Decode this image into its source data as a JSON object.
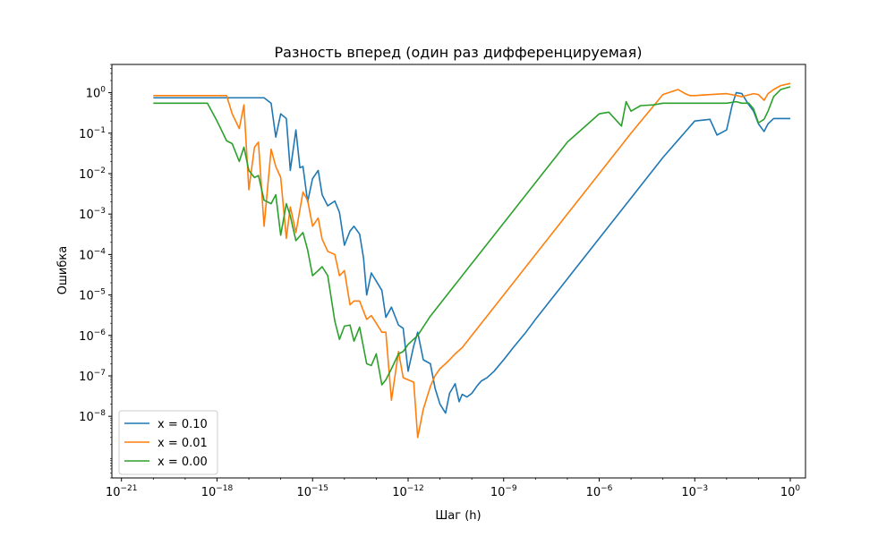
{
  "chart_data": {
    "type": "line",
    "title": "Разность вперед (один раз дифференцируемая)",
    "xlabel": "Шаг (h)",
    "ylabel": "Ошибка",
    "xscale": "log",
    "yscale": "log",
    "xlim": [
      5e-22,
      3
    ],
    "ylim": [
      3e-10,
      5
    ],
    "x_ticks": [
      1e-21,
      1e-18,
      1e-15,
      1e-12,
      1e-09,
      1e-06,
      0.001,
      1
    ],
    "x_tick_labels": [
      {
        "base": "10",
        "exp": "−21"
      },
      {
        "base": "10",
        "exp": "−18"
      },
      {
        "base": "10",
        "exp": "−15"
      },
      {
        "base": "10",
        "exp": "−12"
      },
      {
        "base": "10",
        "exp": "−9"
      },
      {
        "base": "10",
        "exp": "−6"
      },
      {
        "base": "10",
        "exp": "−3"
      },
      {
        "base": "10",
        "exp": "0"
      }
    ],
    "y_ticks": [
      1e-08,
      1e-07,
      1e-06,
      1e-05,
      0.0001,
      0.001,
      0.01,
      0.1,
      1
    ],
    "y_tick_labels": [
      {
        "base": "10",
        "exp": "−8"
      },
      {
        "base": "10",
        "exp": "−7"
      },
      {
        "base": "10",
        "exp": "−6"
      },
      {
        "base": "10",
        "exp": "−5"
      },
      {
        "base": "10",
        "exp": "−4"
      },
      {
        "base": "10",
        "exp": "−3"
      },
      {
        "base": "10",
        "exp": "−2"
      },
      {
        "base": "10",
        "exp": "−1"
      },
      {
        "base": "10",
        "exp": "0"
      }
    ],
    "grid": false,
    "legend_position": "lower-left",
    "colors": [
      "#1f77b4",
      "#ff7f0e",
      "#2ca02c"
    ],
    "series": [
      {
        "name": "x = 0.10",
        "color": "#1f77b4",
        "x": [
          1e-20,
          1e-18,
          1e-17,
          3e-17,
          5e-17,
          7e-17,
          1e-16,
          1.5e-16,
          2e-16,
          3e-16,
          4e-16,
          5e-16,
          7e-16,
          1e-15,
          1.5e-15,
          2e-15,
          3e-15,
          5e-15,
          7e-15,
          1e-14,
          1.5e-14,
          2e-14,
          3e-14,
          4e-14,
          5e-14,
          7e-14,
          1e-13,
          1.5e-13,
          2e-13,
          3e-13,
          5e-13,
          7e-13,
          1e-12,
          1.5e-12,
          2e-12,
          3e-12,
          5e-12,
          7e-12,
          1e-11,
          1.5e-11,
          2e-11,
          3e-11,
          4e-11,
          5e-11,
          7e-11,
          1e-10,
          1.5e-10,
          2e-10,
          3e-10,
          5e-10,
          1e-09,
          2e-09,
          5e-09,
          1e-08,
          1e-07,
          1e-06,
          1e-05,
          0.0001,
          0.001,
          0.003,
          0.005,
          0.01,
          0.015,
          0.02,
          0.03,
          0.05,
          0.07,
          0.1,
          0.15,
          0.2,
          0.3,
          0.5,
          0.7,
          1
        ],
        "y": [
          0.75,
          0.75,
          0.75,
          0.75,
          0.55,
          0.08,
          0.3,
          0.23,
          0.012,
          0.12,
          0.014,
          0.015,
          0.002,
          0.0075,
          0.012,
          0.003,
          0.0016,
          0.0021,
          0.0011,
          0.00017,
          0.00038,
          0.0005,
          0.00032,
          8e-05,
          1e-05,
          3.5e-05,
          2.2e-05,
          1.3e-05,
          2.8e-06,
          5e-06,
          1.8e-06,
          1.5e-06,
          1.3e-07,
          5.5e-07,
          1.2e-06,
          2.5e-07,
          2e-07,
          5e-08,
          2e-08,
          1.2e-08,
          3.7e-08,
          6.4e-08,
          2.3e-08,
          3.5e-08,
          3e-08,
          3.7e-08,
          5.8e-08,
          7.5e-08,
          9e-08,
          1.3e-07,
          2.5e-07,
          5e-07,
          1.2e-06,
          2.5e-06,
          2.5e-05,
          0.00025,
          0.0025,
          0.025,
          0.2,
          0.22,
          0.09,
          0.12,
          0.5,
          1.0,
          0.95,
          0.5,
          0.35,
          0.17,
          0.11,
          0.17,
          0.23,
          0.23,
          0.23,
          0.23
        ]
      },
      {
        "name": "x = 0.01",
        "color": "#ff7f0e",
        "x": [
          1e-20,
          1e-19,
          3e-19,
          7e-19,
          1e-18,
          2e-18,
          3e-18,
          5e-18,
          7e-18,
          1e-17,
          1.5e-17,
          2e-17,
          3e-17,
          5e-17,
          7e-17,
          1e-16,
          1.5e-16,
          2e-16,
          3e-16,
          5e-16,
          7e-16,
          1e-15,
          1.5e-15,
          2e-15,
          3e-15,
          5e-15,
          7e-15,
          1e-14,
          1.5e-14,
          2e-14,
          3e-14,
          5e-14,
          7e-14,
          1e-13,
          1.5e-13,
          2e-13,
          3e-13,
          5e-13,
          7e-13,
          1e-12,
          1.5e-12,
          2e-12,
          3e-12,
          5e-12,
          7e-12,
          1e-11,
          1.5e-11,
          2e-11,
          3e-11,
          5e-11,
          7e-11,
          1e-10,
          1e-09,
          1e-08,
          1e-07,
          1e-06,
          1e-05,
          0.0001,
          0.0003,
          0.0005,
          0.0007,
          0.001,
          0.003,
          0.01,
          0.03,
          0.07,
          0.1,
          0.15,
          0.2,
          0.3,
          0.5,
          1
        ],
        "y": [
          0.85,
          0.85,
          0.85,
          0.85,
          0.85,
          0.85,
          0.3,
          0.13,
          0.5,
          0.004,
          0.045,
          0.06,
          0.0005,
          0.04,
          0.015,
          0.008,
          0.00025,
          0.0015,
          0.00035,
          0.0035,
          0.0022,
          0.0005,
          0.0008,
          0.00024,
          0.00012,
          0.0001,
          3e-05,
          4e-05,
          5.71e-06,
          7.1e-06,
          7.1e-06,
          2.5e-06,
          3.1e-06,
          2e-06,
          1.2e-06,
          1.2e-06,
          2.5e-08,
          4e-07,
          9e-08,
          8e-08,
          7e-08,
          3e-09,
          1.5e-08,
          5.5e-08,
          1e-07,
          1.5e-07,
          2e-07,
          2.5e-07,
          3.5e-07,
          5e-07,
          7e-07,
          1e-06,
          1e-05,
          0.0001,
          0.001,
          0.01,
          0.1,
          0.9,
          1.2,
          0.95,
          0.85,
          0.85,
          0.9,
          0.95,
          0.8,
          0.95,
          0.9,
          0.65,
          0.95,
          1.2,
          1.5,
          1.7
        ]
      },
      {
        "name": "x = 0.00",
        "color": "#2ca02c",
        "x": [
          1e-20,
          1e-19,
          5e-19,
          1e-18,
          2e-18,
          3e-18,
          5e-18,
          7e-18,
          1e-17,
          1.5e-17,
          2e-17,
          3e-17,
          5e-17,
          7e-17,
          1e-16,
          1.5e-16,
          2e-16,
          3e-16,
          5e-16,
          7e-16,
          1e-15,
          1.5e-15,
          2e-15,
          3e-15,
          5e-15,
          7e-15,
          1e-14,
          1.5e-14,
          2e-14,
          3e-14,
          5e-14,
          7e-14,
          1e-13,
          1.5e-13,
          2e-13,
          3e-13,
          5e-13,
          7e-13,
          1e-12,
          2e-12,
          5e-12,
          1e-11,
          1e-10,
          1e-09,
          1e-08,
          1e-07,
          1e-06,
          2e-06,
          5e-06,
          7e-06,
          1e-05,
          2e-05,
          5e-05,
          0.0001,
          0.0003,
          0.001,
          0.003,
          0.01,
          0.02,
          0.03,
          0.05,
          0.07,
          0.1,
          0.15,
          0.2,
          0.3,
          0.5,
          1
        ],
        "y": [
          0.55,
          0.55,
          0.55,
          0.2,
          0.065,
          0.055,
          0.02,
          0.045,
          0.012,
          0.008,
          0.009,
          0.0022,
          0.0018,
          0.003,
          0.0003,
          0.0018,
          0.0009,
          0.00022,
          0.00035,
          0.00013,
          3e-05,
          4e-05,
          5e-05,
          3e-05,
          2.25e-06,
          8e-07,
          1.7e-06,
          1.8e-06,
          7.2e-07,
          1.6e-06,
          2e-07,
          1.8e-07,
          3.5e-07,
          6e-08,
          8e-08,
          1.5e-07,
          3.5e-07,
          4e-07,
          6e-07,
          1e-06,
          3e-06,
          6e-06,
          6e-05,
          0.0006,
          0.006,
          0.06,
          0.3,
          0.33,
          0.15,
          0.6,
          0.35,
          0.48,
          0.5,
          0.55,
          0.55,
          0.55,
          0.55,
          0.55,
          0.6,
          0.55,
          0.55,
          0.4,
          0.18,
          0.22,
          0.35,
          0.8,
          1.2,
          1.4
        ]
      }
    ]
  }
}
